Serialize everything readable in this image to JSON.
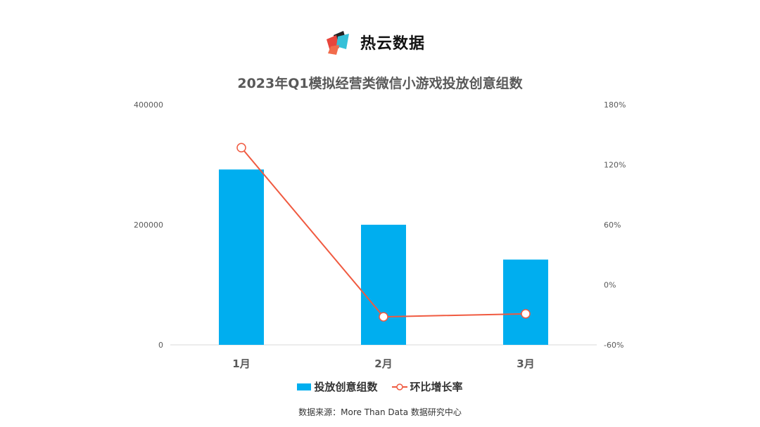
{
  "brand": {
    "name": "热云数据"
  },
  "colors": {
    "bar": "#00aeef",
    "line": "#f05a40",
    "axis_text": "#595959",
    "gridline": "#d9d9d9"
  },
  "chart_data": {
    "type": "bar",
    "title": "2023年Q1模拟经营类微信小游戏投放创意组数",
    "categories": [
      "1月",
      "2月",
      "3月"
    ],
    "series": [
      {
        "name": "投放创意组数",
        "type": "bar",
        "axis": "left",
        "values": [
          292000,
          200000,
          142000
        ]
      },
      {
        "name": "环比增长率",
        "type": "line",
        "axis": "right",
        "values": [
          1.37,
          -0.32,
          -0.29
        ]
      }
    ],
    "ylim_left": [
      0,
      400000
    ],
    "yticks_left": [
      "0",
      "200000",
      "400000"
    ],
    "ylim_right": [
      -0.6,
      1.8
    ],
    "yticks_right": [
      "-60%",
      "0%",
      "60%",
      "120%",
      "180%"
    ],
    "legend_position": "bottom",
    "grid": false
  },
  "source": "数据来源：More Than Data 数据研究中心"
}
